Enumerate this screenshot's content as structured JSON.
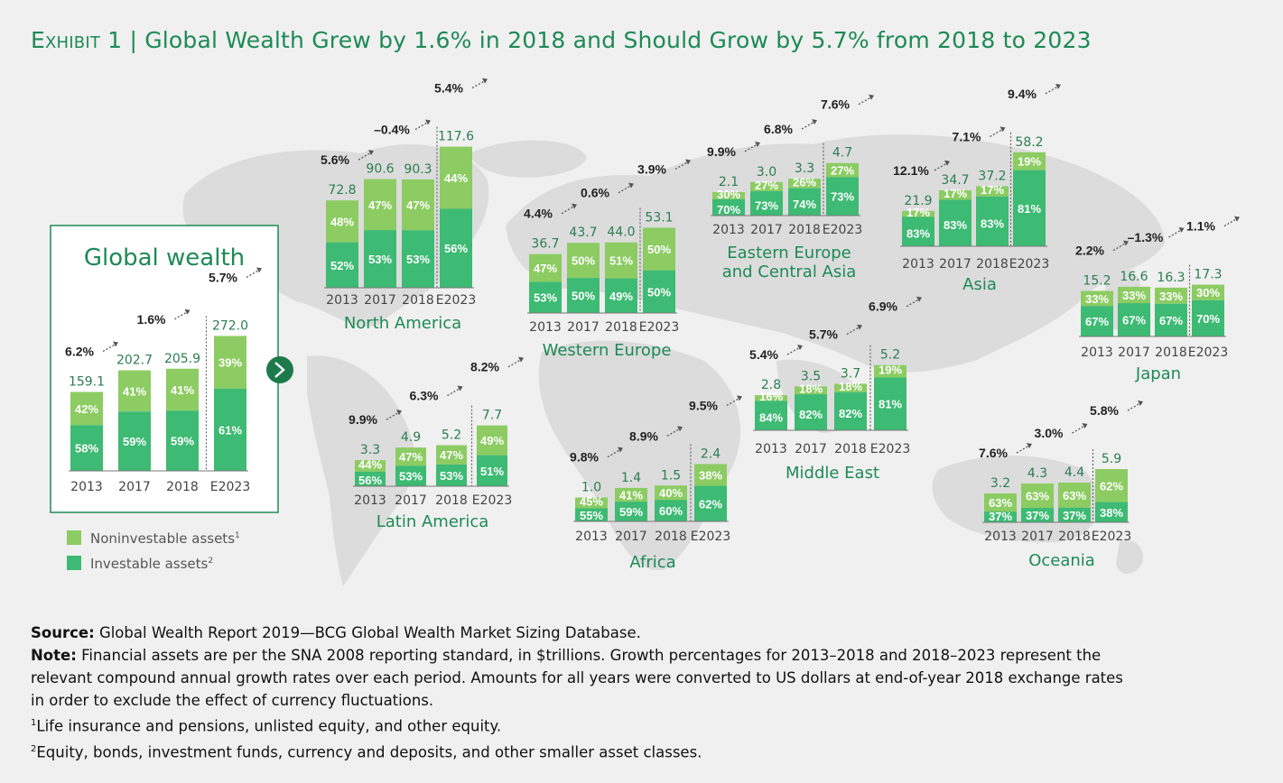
{
  "title": {
    "exhibit": "Exhibit 1",
    "separator": "|",
    "text": "Global Wealth Grew by 1.6% in 2018 and Should Grow by 5.7% from 2018 to 2023"
  },
  "legend": {
    "noninvestable": "Noninvestable assets",
    "noninvestable_sup": "1",
    "investable": "Investable assets",
    "investable_sup": "2"
  },
  "colors": {
    "noninvestable": "#8ccc62",
    "investable": "#3dba73",
    "title": "#1d8a55",
    "map": "#dcdcdc",
    "background": "#f0f0f0"
  },
  "chart_data": [
    {
      "type": "bar",
      "id": "global",
      "title": "Global wealth",
      "categories": [
        "2013",
        "2017",
        "2018",
        "E2023"
      ],
      "totals": [
        "159.1",
        "202.7",
        "205.9",
        "272.0"
      ],
      "series": [
        {
          "name": "Investable assets",
          "values": [
            "58%",
            "59%",
            "59%",
            "61%"
          ]
        },
        {
          "name": "Noninvestable assets",
          "values": [
            "42%",
            "41%",
            "41%",
            "39%"
          ]
        }
      ],
      "growth": [
        "6.2%",
        "1.6%",
        "5.7%"
      ]
    },
    {
      "type": "bar",
      "id": "north-america",
      "title": "North America",
      "categories": [
        "2013",
        "2017",
        "2018",
        "E2023"
      ],
      "totals": [
        "72.8",
        "90.6",
        "90.3",
        "117.6"
      ],
      "series": [
        {
          "name": "Investable assets",
          "values": [
            "52%",
            "53%",
            "53%",
            "56%"
          ]
        },
        {
          "name": "Noninvestable assets",
          "values": [
            "48%",
            "47%",
            "47%",
            "44%"
          ]
        }
      ],
      "growth": [
        "5.6%",
        "–0.4%",
        "5.4%"
      ]
    },
    {
      "type": "bar",
      "id": "western-europe",
      "title": "Western Europe",
      "categories": [
        "2013",
        "2017",
        "2018",
        "E2023"
      ],
      "totals": [
        "36.7",
        "43.7",
        "44.0",
        "53.1"
      ],
      "series": [
        {
          "name": "Investable assets",
          "values": [
            "53%",
            "50%",
            "49%",
            "50%"
          ]
        },
        {
          "name": "Noninvestable assets",
          "values": [
            "47%",
            "50%",
            "51%",
            "50%"
          ]
        }
      ],
      "growth": [
        "4.4%",
        "0.6%",
        "3.9%"
      ]
    },
    {
      "type": "bar",
      "id": "eastern-europe",
      "title": "Eastern Europe and Central Asia",
      "categories": [
        "2013",
        "2017",
        "2018",
        "E2023"
      ],
      "totals": [
        "2.1",
        "3.0",
        "3.3",
        "4.7"
      ],
      "series": [
        {
          "name": "Investable assets",
          "values": [
            "70%",
            "73%",
            "74%",
            "73%"
          ]
        },
        {
          "name": "Noninvestable assets",
          "values": [
            "30%",
            "27%",
            "26%",
            "27%"
          ]
        }
      ],
      "growth": [
        "9.9%",
        "6.8%",
        "7.6%"
      ]
    },
    {
      "type": "bar",
      "id": "asia",
      "title": "Asia",
      "categories": [
        "2013",
        "2017",
        "2018",
        "E2023"
      ],
      "totals": [
        "21.9",
        "34.7",
        "37.2",
        "58.2"
      ],
      "series": [
        {
          "name": "Investable assets",
          "values": [
            "83%",
            "83%",
            "83%",
            "81%"
          ]
        },
        {
          "name": "Noninvestable assets",
          "values": [
            "17%",
            "17%",
            "17%",
            "19%"
          ]
        }
      ],
      "growth": [
        "12.1%",
        "7.1%",
        "9.4%"
      ]
    },
    {
      "type": "bar",
      "id": "japan",
      "title": "Japan",
      "categories": [
        "2013",
        "2017",
        "2018",
        "E2023"
      ],
      "totals": [
        "15.2",
        "16.6",
        "16.3",
        "17.3"
      ],
      "series": [
        {
          "name": "Investable assets",
          "values": [
            "67%",
            "67%",
            "67%",
            "70%"
          ]
        },
        {
          "name": "Noninvestable assets",
          "values": [
            "33%",
            "33%",
            "33%",
            "30%"
          ]
        }
      ],
      "growth": [
        "2.2%",
        "–1.3%",
        "1.1%"
      ]
    },
    {
      "type": "bar",
      "id": "latin-america",
      "title": "Latin America",
      "categories": [
        "2013",
        "2017",
        "2018",
        "E2023"
      ],
      "totals": [
        "3.3",
        "4.9",
        "5.2",
        "7.7"
      ],
      "series": [
        {
          "name": "Investable assets",
          "values": [
            "56%",
            "53%",
            "53%",
            "51%"
          ]
        },
        {
          "name": "Noninvestable assets",
          "values": [
            "44%",
            "47%",
            "47%",
            "49%"
          ]
        }
      ],
      "growth": [
        "9.9%",
        "6.3%",
        "8.2%"
      ]
    },
    {
      "type": "bar",
      "id": "africa",
      "title": "Africa",
      "categories": [
        "2013",
        "2017",
        "2018",
        "E2023"
      ],
      "totals": [
        "1.0",
        "1.4",
        "1.5",
        "2.4"
      ],
      "series": [
        {
          "name": "Investable assets",
          "values": [
            "55%",
            "59%",
            "60%",
            "62%"
          ]
        },
        {
          "name": "Noninvestable assets",
          "values": [
            "45%",
            "41%",
            "40%",
            "38%"
          ]
        }
      ],
      "growth": [
        "9.8%",
        "8.9%",
        "9.5%"
      ]
    },
    {
      "type": "bar",
      "id": "middle-east",
      "title": "Middle East",
      "categories": [
        "2013",
        "2017",
        "2018",
        "E2023"
      ],
      "totals": [
        "2.8",
        "3.5",
        "3.7",
        "5.2"
      ],
      "series": [
        {
          "name": "Investable assets",
          "values": [
            "84%",
            "82%",
            "82%",
            "81%"
          ]
        },
        {
          "name": "Noninvestable assets",
          "values": [
            "16%",
            "18%",
            "18%",
            "19%"
          ]
        }
      ],
      "growth": [
        "5.4%",
        "5.7%",
        "6.9%"
      ]
    },
    {
      "type": "bar",
      "id": "oceania",
      "title": "Oceania",
      "categories": [
        "2013",
        "2017",
        "2018",
        "E2023"
      ],
      "totals": [
        "3.2",
        "4.3",
        "4.4",
        "5.9"
      ],
      "series": [
        {
          "name": "Investable assets",
          "values": [
            "37%",
            "37%",
            "37%",
            "38%"
          ]
        },
        {
          "name": "Noninvestable assets",
          "values": [
            "63%",
            "63%",
            "63%",
            "62%"
          ]
        }
      ],
      "growth": [
        "7.6%",
        "3.0%",
        "5.8%"
      ]
    }
  ],
  "notes": {
    "source_label": "Source:",
    "source_text": "Global Wealth Report 2019—BCG Global Wealth Market Sizing Database.",
    "note_label": "Note:",
    "note_line1": "Financial assets are per the SNA 2008 reporting standard, in $trillions. Growth percentages for 2013–2018 and 2018–2023 represent the",
    "note_line2": "relevant compound annual growth rates over each period. Amounts for all years were converted to US dollars at end-of-year 2018 exchange rates",
    "note_line3": "in order to exclude the effect of currency fluctuations.",
    "fn1_mark": "1",
    "fn1_text": "Life insurance and pensions, unlisted equity, and other equity.",
    "fn2_mark": "2",
    "fn2_text": "Equity, bonds, investment funds, currency and deposits, and other smaller asset classes."
  }
}
